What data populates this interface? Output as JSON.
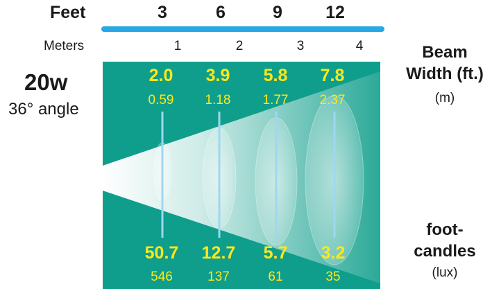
{
  "units": {
    "feet_label": "Feet",
    "meters_label": "Meters"
  },
  "feet_ticks": [
    "3",
    "6",
    "9",
    "12"
  ],
  "meter_ticks": [
    "1",
    "2",
    "3",
    "4"
  ],
  "lamp": {
    "wattage": "20w",
    "angle": "36° angle"
  },
  "beam_width": {
    "title_line1": "Beam",
    "title_line2": "Width (ft.)",
    "unit": "(m)"
  },
  "illuminance": {
    "title_line1": "foot-",
    "title_line2": "candles",
    "unit": "(lux)"
  },
  "colors": {
    "panel": "#0f9e8b",
    "values": "#ffe81a",
    "scale_bar": "#29a8e6",
    "markers": "#9fd7f2"
  },
  "measurements": [
    {
      "feet": "3",
      "beam_ft": "2.0",
      "beam_m": "0.59",
      "fc": "50.7",
      "lux": "546"
    },
    {
      "feet": "6",
      "beam_ft": "3.9",
      "beam_m": "1.18",
      "fc": "12.7",
      "lux": "137"
    },
    {
      "feet": "9",
      "beam_ft": "5.8",
      "beam_m": "1.77",
      "fc": "5.7",
      "lux": "61"
    },
    {
      "feet": "12",
      "beam_ft": "7.8",
      "beam_m": "2.37",
      "fc": "3.2",
      "lux": "35"
    }
  ]
}
